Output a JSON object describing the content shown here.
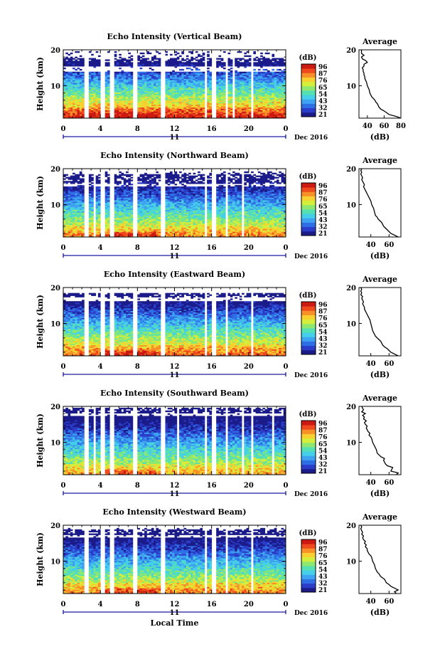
{
  "chart_data": [
    {
      "type": "heatmap",
      "title": "Echo Intensity (Vertical Beam)",
      "ylabel": "Height (km)",
      "xticks": [
        "0",
        "4",
        "8",
        "12",
        "16",
        "20",
        "0"
      ],
      "yticks": [
        "20",
        "10"
      ],
      "xlim": [
        0,
        24
      ],
      "ylim": [
        1,
        20
      ],
      "date_label": "11",
      "date_suffix": "Dec 2016",
      "colorbar": {
        "unit": "(dB)",
        "ticks": [
          "96",
          "87",
          "76",
          "65",
          "54",
          "43",
          "32",
          "21"
        ],
        "range": [
          21,
          96
        ]
      },
      "gaps": [
        [
          2.3,
          2.7
        ],
        [
          4.1,
          4.6
        ],
        [
          5.1,
          5.6
        ],
        [
          7.6,
          8.0
        ],
        [
          10.6,
          11.1
        ],
        [
          15.3,
          15.6
        ],
        [
          16.1,
          16.4
        ],
        [
          16.9,
          17.1
        ],
        [
          17.6,
          17.8
        ],
        [
          18.2,
          18.4
        ],
        [
          20.3,
          20.6
        ]
      ],
      "top_km": 20,
      "upper_layer": [
        16.5,
        17.6
      ],
      "lower_gap": [
        14.1,
        15.6
      ],
      "strength": 1.0,
      "average": {
        "title": "Average",
        "xlabel": "(dB)",
        "xticks": [
          "40",
          "60",
          "80"
        ],
        "xlim": [
          30,
          80
        ],
        "yticks": [
          "20",
          "10"
        ],
        "x": [
          80,
          74,
          66,
          60,
          56,
          54,
          52,
          50,
          49,
          47,
          45,
          43,
          42,
          40,
          39,
          38,
          37,
          37,
          36,
          36,
          35,
          35,
          34,
          36,
          36,
          40,
          38,
          34,
          33,
          36,
          33,
          33,
          33
        ],
        "y": [
          1,
          1.5,
          2,
          3,
          3.5,
          4,
          5,
          5.5,
          6,
          6.5,
          7,
          8,
          9,
          10,
          11,
          11.5,
          12,
          12.5,
          13,
          13.5,
          14,
          14.5,
          15,
          15.5,
          16,
          16.5,
          17,
          17.5,
          18,
          18.5,
          19,
          19.5,
          20
        ]
      }
    },
    {
      "type": "heatmap",
      "title": "Echo Intensity (Northward Beam)",
      "ylabel": "Height (km)",
      "xticks": [
        "0",
        "4",
        "8",
        "12",
        "16",
        "20",
        "0"
      ],
      "yticks": [
        "20",
        "10"
      ],
      "xlim": [
        0,
        24
      ],
      "ylim": [
        1,
        20
      ],
      "date_label": "11",
      "date_suffix": "Dec 2016",
      "colorbar": {
        "unit": "(dB)",
        "ticks": [
          "96",
          "87",
          "76",
          "65",
          "54",
          "43",
          "32",
          "21"
        ],
        "range": [
          21,
          96
        ]
      },
      "gaps": [
        [
          2.3,
          2.7
        ],
        [
          3.3,
          3.6
        ],
        [
          4.1,
          4.6
        ],
        [
          5.1,
          5.6
        ],
        [
          7.6,
          8.0
        ],
        [
          10.6,
          11.1
        ],
        [
          12.4,
          12.6
        ],
        [
          15.3,
          15.6
        ],
        [
          16.1,
          16.4
        ],
        [
          16.9,
          17.1
        ],
        [
          17.6,
          17.8
        ],
        [
          19.3,
          19.5
        ]
      ],
      "top_km": 19.5,
      "upper_layer": [
        16.0,
        18.5
      ],
      "lower_gap": [
        15.2,
        15.8
      ],
      "strength": 0.85,
      "average": {
        "title": "Average",
        "xlabel": "(dB)",
        "xticks": [
          "40",
          "60"
        ],
        "xlim": [
          27,
          73
        ],
        "yticks": [
          "20",
          "10"
        ],
        "x": [
          70,
          66,
          62,
          58,
          56,
          54,
          52,
          50,
          48,
          47,
          45,
          44,
          43,
          41,
          40,
          39,
          38,
          37,
          36,
          35,
          34,
          33,
          32,
          33,
          32,
          31,
          30,
          31,
          30,
          29,
          30,
          29,
          30
        ],
        "y": [
          1,
          1.5,
          2,
          3,
          3.5,
          4,
          5,
          5.5,
          6,
          6.5,
          7,
          8,
          9,
          10,
          11,
          11.5,
          12,
          12.5,
          13,
          13.5,
          14,
          14.5,
          15,
          15.5,
          16,
          16.5,
          17,
          17.5,
          18,
          18.5,
          19,
          19.5,
          20
        ]
      }
    },
    {
      "type": "heatmap",
      "title": "Echo Intensity (Eastward Beam)",
      "ylabel": "Height (km)",
      "xticks": [
        "0",
        "4",
        "8",
        "12",
        "16",
        "20",
        "0"
      ],
      "yticks": [
        "20",
        "10"
      ],
      "xlim": [
        0,
        24
      ],
      "ylim": [
        1,
        20
      ],
      "date_label": "11",
      "date_suffix": "Dec 2016",
      "colorbar": {
        "unit": "(dB)",
        "ticks": [
          "96",
          "87",
          "76",
          "65",
          "54",
          "43",
          "32",
          "21"
        ],
        "range": [
          21,
          96
        ]
      },
      "gaps": [
        [
          2.3,
          2.7
        ],
        [
          4.1,
          4.6
        ],
        [
          5.1,
          5.6
        ],
        [
          7.6,
          8.0
        ],
        [
          10.6,
          11.1
        ],
        [
          15.3,
          15.6
        ],
        [
          16.1,
          16.4
        ],
        [
          16.9,
          17.1
        ],
        [
          17.6,
          17.8
        ],
        [
          20.3,
          20.6
        ]
      ],
      "top_km": 19.0,
      "upper_layer": [
        17.5,
        18.8
      ],
      "lower_gap": [
        16.3,
        17.3
      ],
      "strength": 0.9,
      "average": {
        "title": "Average",
        "xlabel": "(dB)",
        "xticks": [
          "40",
          "60"
        ],
        "xlim": [
          27,
          73
        ],
        "yticks": [
          "20",
          "10"
        ],
        "x": [
          70,
          66,
          62,
          58,
          55,
          53,
          51,
          49,
          47,
          45,
          44,
          42,
          41,
          40,
          39,
          38,
          37,
          36,
          35,
          34,
          33,
          33,
          32,
          31,
          32,
          31,
          30,
          31,
          29,
          30,
          29,
          30,
          29
        ],
        "y": [
          1,
          1.5,
          2,
          3,
          3.5,
          4,
          5,
          5.5,
          6,
          6.5,
          7,
          8,
          9,
          10,
          11,
          11.5,
          12,
          12.5,
          13,
          13.5,
          14,
          14.5,
          15,
          15.5,
          16,
          16.5,
          17,
          17.5,
          18,
          18.5,
          19,
          19.5,
          20
        ]
      }
    },
    {
      "type": "heatmap",
      "title": "Echo Intensity (Southward Beam)",
      "ylabel": "Height (km)",
      "xticks": [
        "0",
        "4",
        "8",
        "12",
        "16",
        "20",
        "0"
      ],
      "yticks": [
        "20",
        "10"
      ],
      "xlim": [
        0,
        24
      ],
      "ylim": [
        1,
        20
      ],
      "date_label": "11",
      "date_suffix": "Dec 2016",
      "colorbar": {
        "unit": "(dB)",
        "ticks": [
          "96",
          "87",
          "76",
          "65",
          "54",
          "43",
          "32",
          "21"
        ],
        "range": [
          21,
          96
        ]
      },
      "gaps": [
        [
          2.3,
          2.7
        ],
        [
          3.2,
          3.5
        ],
        [
          4.1,
          4.6
        ],
        [
          5.1,
          5.6
        ],
        [
          7.6,
          8.0
        ],
        [
          10.6,
          11.1
        ],
        [
          12.3,
          12.5
        ],
        [
          15.3,
          15.6
        ],
        [
          16.1,
          16.4
        ],
        [
          16.9,
          17.1
        ],
        [
          17.6,
          17.8
        ],
        [
          19.3,
          19.5
        ],
        [
          20.3,
          20.6
        ],
        [
          22.4,
          22.7
        ]
      ],
      "top_km": 20,
      "upper_layer": [
        18.0,
        19.6
      ],
      "lower_gap": [
        17.2,
        18.0
      ],
      "strength": 0.8,
      "average": {
        "title": "Average",
        "xlabel": "(dB)",
        "xticks": [
          "40",
          "60"
        ],
        "xlim": [
          27,
          73
        ],
        "yticks": [
          "20",
          "10"
        ],
        "x": [
          68,
          70,
          62,
          64,
          58,
          56,
          54,
          55,
          51,
          49,
          47,
          46,
          44,
          42,
          41,
          40,
          38,
          39,
          37,
          36,
          35,
          36,
          34,
          33,
          35,
          32,
          33,
          31,
          34,
          30,
          32,
          31,
          30
        ],
        "y": [
          1,
          1.5,
          2,
          3,
          3.5,
          4,
          5,
          5.5,
          6,
          6.5,
          7,
          8,
          9,
          10,
          11,
          11.5,
          12,
          12.5,
          13,
          13.5,
          14,
          14.5,
          15,
          15.5,
          16,
          16.5,
          17,
          17.5,
          18,
          18.5,
          19,
          19.5,
          20
        ]
      }
    },
    {
      "type": "heatmap",
      "title": "Echo Intensity (Westward Beam)",
      "ylabel": "Height (km)",
      "xticks": [
        "0",
        "4",
        "8",
        "12",
        "16",
        "20",
        "0"
      ],
      "yticks": [
        "20",
        "10"
      ],
      "xlim": [
        0,
        24
      ],
      "ylim": [
        1,
        20
      ],
      "date_label": "11",
      "date_suffix": "Dec 2016",
      "colorbar": {
        "unit": "(dB)",
        "ticks": [
          "96",
          "87",
          "76",
          "65",
          "54",
          "43",
          "32",
          "21"
        ],
        "range": [
          21,
          96
        ]
      },
      "gaps": [
        [
          2.3,
          2.7
        ],
        [
          4.1,
          4.6
        ],
        [
          5.1,
          5.6
        ],
        [
          7.6,
          8.0
        ],
        [
          10.6,
          11.1
        ],
        [
          15.3,
          15.6
        ],
        [
          16.1,
          16.4
        ],
        [
          16.9,
          17.1
        ],
        [
          17.6,
          17.8
        ],
        [
          20.3,
          20.6
        ]
      ],
      "top_km": 19.5,
      "upper_layer": [
        17.6,
        19.0
      ],
      "lower_gap": [
        16.4,
        17.4
      ],
      "strength": 0.85,
      "average": {
        "title": "Average",
        "xlabel": "(dB)",
        "xticks": [
          "40",
          "60"
        ],
        "xlim": [
          27,
          73
        ],
        "yticks": [
          "20",
          "10"
        ],
        "x": [
          68,
          66,
          70,
          62,
          60,
          57,
          55,
          52,
          50,
          49,
          47,
          45,
          44,
          42,
          41,
          40,
          38,
          37,
          36,
          36,
          34,
          35,
          33,
          34,
          32,
          31,
          32,
          30,
          31,
          30,
          29,
          30,
          29
        ],
        "y": [
          1,
          1.5,
          2,
          3,
          3.5,
          4,
          5,
          5.5,
          6,
          6.5,
          7,
          8,
          9,
          10,
          11,
          11.5,
          12,
          12.5,
          13,
          13.5,
          14,
          14.5,
          15,
          15.5,
          16,
          16.5,
          17,
          17.5,
          18,
          18.5,
          19,
          19.5,
          20
        ]
      }
    }
  ],
  "footer": {
    "xlabel": "Local Time"
  },
  "colors": {
    "colormap": [
      "#1b1b8a",
      "#2a3cc8",
      "#2f6fe6",
      "#3ea3f0",
      "#45cfe8",
      "#55e0b4",
      "#8ee870",
      "#d4ee3c",
      "#f8d030",
      "#f89028",
      "#ee4a1e",
      "#cc1a12"
    ],
    "axis": "#000000",
    "date_axis": "#1a1aa0"
  }
}
